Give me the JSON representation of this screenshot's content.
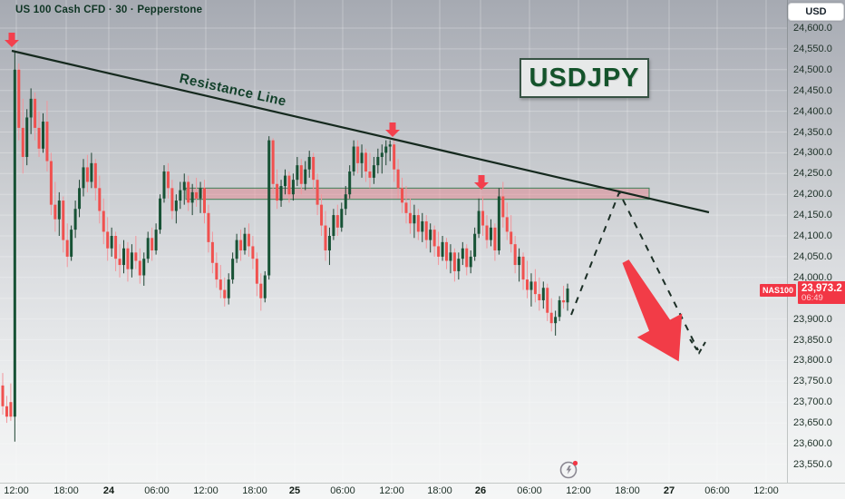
{
  "header": {
    "title": "US 100 Cash CFD · 30 · Pepperstone",
    "currency_button": "USD"
  },
  "annotations": {
    "pair_label": "USDJPY",
    "resistance_label": "Resistance Line",
    "price_badge": {
      "symbol": "NAS100",
      "price": "23,973.2",
      "countdown": "06:49"
    }
  },
  "colors": {
    "bull_body": "#175235",
    "bull_wick": "#1d4231",
    "bear_body": "#f0514f",
    "bear_wick": "#f2959b",
    "zone_fill": "rgba(239,83,96,0.30)",
    "zone_border": "rgba(47,122,78,0.9)",
    "trendline": "#15291e",
    "dashed": "#1b2e25",
    "marker_red": "#f3404d",
    "big_arrow": "#f23c47",
    "badge_red": "#f23645",
    "grid": "rgba(255,255,255,0.28)",
    "axis_text": "#1c2f26"
  },
  "price_axis": {
    "labels": [
      {
        "text": "24,600.0",
        "value": 24600
      },
      {
        "text": "24,550.0",
        "value": 24550
      },
      {
        "text": "24,500.0",
        "value": 24500
      },
      {
        "text": "24,450.0",
        "value": 24450
      },
      {
        "text": "24,400.0",
        "value": 24400
      },
      {
        "text": "24,350.0",
        "value": 24350
      },
      {
        "text": "24,300.0",
        "value": 24300
      },
      {
        "text": "24,250.0",
        "value": 24250
      },
      {
        "text": "24,200.0",
        "value": 24200
      },
      {
        "text": "24,150.0",
        "value": 24150
      },
      {
        "text": "24,100.0",
        "value": 24100
      },
      {
        "text": "24,050.0",
        "value": 24050
      },
      {
        "text": "24,000.0",
        "value": 24000
      },
      {
        "text": "23,900.0",
        "value": 23900
      },
      {
        "text": "23,850.0",
        "value": 23850
      },
      {
        "text": "23,800.0",
        "value": 23800
      },
      {
        "text": "23,750.0",
        "value": 23750
      },
      {
        "text": "23,700.0",
        "value": 23700
      },
      {
        "text": "23,650.0",
        "value": 23650
      },
      {
        "text": "23,600.0",
        "value": 23600
      },
      {
        "text": "23,550.0",
        "value": 23550
      }
    ],
    "grid_values": [
      24600,
      24550,
      24500,
      24450,
      24400,
      24350,
      24300,
      24250,
      24200,
      24150,
      24100,
      24050,
      24000,
      23950,
      23900,
      23850,
      23800,
      23750,
      23700,
      23650,
      23600,
      23550
    ]
  },
  "time_axis": {
    "labels": [
      {
        "text": "12:00",
        "x": 18,
        "bold": false
      },
      {
        "text": "18:00",
        "x": 73,
        "bold": false
      },
      {
        "text": "24",
        "x": 120,
        "bold": true
      },
      {
        "text": "06:00",
        "x": 173,
        "bold": false
      },
      {
        "text": "12:00",
        "x": 227,
        "bold": false
      },
      {
        "text": "18:00",
        "x": 281,
        "bold": false
      },
      {
        "text": "25",
        "x": 325,
        "bold": true
      },
      {
        "text": "06:00",
        "x": 378,
        "bold": false
      },
      {
        "text": "12:00",
        "x": 432,
        "bold": false
      },
      {
        "text": "18:00",
        "x": 485,
        "bold": false
      },
      {
        "text": "26",
        "x": 530,
        "bold": true
      },
      {
        "text": "06:00",
        "x": 584,
        "bold": false
      },
      {
        "text": "12:00",
        "x": 638,
        "bold": false
      },
      {
        "text": "18:00",
        "x": 692,
        "bold": false
      },
      {
        "text": "27",
        "x": 738,
        "bold": true
      },
      {
        "text": "06:00",
        "x": 791,
        "bold": false
      },
      {
        "text": "12:00",
        "x": 845,
        "bold": false
      }
    ]
  },
  "chart_data": {
    "type": "candlestick",
    "title": "US 100 Cash CFD",
    "interval_minutes": 30,
    "provider": "Pepperstone",
    "ticker_badge": "NAS100",
    "last_price": 23973.2,
    "bar_countdown": "06:49",
    "ylim": [
      23550,
      24600
    ],
    "grid": true,
    "candles": [
      [
        23740,
        23770,
        23670,
        23690
      ],
      [
        23690,
        23715,
        23650,
        23665
      ],
      [
        23700,
        23745,
        23655,
        23665
      ],
      [
        23665,
        24545,
        23605,
        24500
      ],
      [
        24500,
        24515,
        24330,
        24360
      ],
      [
        24360,
        24430,
        24250,
        24290
      ],
      [
        24290,
        24405,
        24270,
        24385
      ],
      [
        24385,
        24455,
        24345,
        24430
      ],
      [
        24430,
        24445,
        24330,
        24360
      ],
      [
        24360,
        24400,
        24290,
        24310
      ],
      [
        24310,
        24395,
        24300,
        24375
      ],
      [
        24375,
        24425,
        24255,
        24280
      ],
      [
        24280,
        24300,
        24150,
        24175
      ],
      [
        24175,
        24230,
        24110,
        24140
      ],
      [
        24140,
        24205,
        24100,
        24185
      ],
      [
        24185,
        24195,
        24060,
        24090
      ],
      [
        24090,
        24130,
        24025,
        24050
      ],
      [
        24050,
        24125,
        24040,
        24115
      ],
      [
        24115,
        24185,
        24095,
        24165
      ],
      [
        24165,
        24235,
        24145,
        24215
      ],
      [
        24215,
        24285,
        24195,
        24265
      ],
      [
        24265,
        24295,
        24205,
        24230
      ],
      [
        24230,
        24300,
        24215,
        24275
      ],
      [
        24275,
        24285,
        24185,
        24215
      ],
      [
        24215,
        24245,
        24130,
        24160
      ],
      [
        24160,
        24190,
        24080,
        24110
      ],
      [
        24110,
        24145,
        24040,
        24070
      ],
      [
        24070,
        24120,
        24050,
        24100
      ],
      [
        24100,
        24110,
        24015,
        24045
      ],
      [
        24045,
        24080,
        24000,
        24030
      ],
      [
        24030,
        24090,
        24010,
        24070
      ],
      [
        24070,
        24085,
        23990,
        24020
      ],
      [
        24020,
        24080,
        24000,
        24060
      ],
      [
        24060,
        24100,
        24020,
        24040
      ],
      [
        24040,
        24070,
        23985,
        24005
      ],
      [
        24005,
        24060,
        23980,
        24045
      ],
      [
        24045,
        24110,
        24035,
        24095
      ],
      [
        24095,
        24120,
        24040,
        24065
      ],
      [
        24065,
        24130,
        24055,
        24115
      ],
      [
        24115,
        24200,
        24105,
        24190
      ],
      [
        24190,
        24270,
        24180,
        24255
      ],
      [
        24255,
        24275,
        24190,
        24215
      ],
      [
        24215,
        24235,
        24140,
        24160
      ],
      [
        24160,
        24200,
        24130,
        24185
      ],
      [
        24185,
        24230,
        24165,
        24210
      ],
      [
        24210,
        24250,
        24175,
        24230
      ],
      [
        24230,
        24245,
        24160,
        24180
      ],
      [
        24180,
        24225,
        24150,
        24205
      ],
      [
        24205,
        24240,
        24170,
        24190
      ],
      [
        24190,
        24230,
        24155,
        24215
      ],
      [
        24215,
        24235,
        24130,
        24155
      ],
      [
        24155,
        24175,
        24060,
        24085
      ],
      [
        24085,
        24110,
        24010,
        24035
      ],
      [
        24035,
        24060,
        23975,
        23995
      ],
      [
        23995,
        24030,
        23950,
        23970
      ],
      [
        23970,
        24000,
        23930,
        23950
      ],
      [
        23950,
        24010,
        23935,
        23995
      ],
      [
        23995,
        24060,
        23985,
        24045
      ],
      [
        24045,
        24105,
        24035,
        24090
      ],
      [
        24090,
        24115,
        24040,
        24065
      ],
      [
        24065,
        24120,
        24055,
        24105
      ],
      [
        24105,
        24130,
        24050,
        24075
      ],
      [
        24075,
        24100,
        24020,
        24045
      ],
      [
        24045,
        24060,
        23955,
        23985
      ],
      [
        23985,
        24010,
        23920,
        23950
      ],
      [
        23950,
        24015,
        23940,
        24005
      ],
      [
        24005,
        24340,
        23995,
        24330
      ],
      [
        24330,
        24335,
        24200,
        24225
      ],
      [
        24225,
        24260,
        24165,
        24185
      ],
      [
        24185,
        24235,
        24170,
        24220
      ],
      [
        24220,
        24260,
        24200,
        24245
      ],
      [
        24245,
        24255,
        24180,
        24200
      ],
      [
        24200,
        24250,
        24185,
        24235
      ],
      [
        24235,
        24290,
        24220,
        24270
      ],
      [
        24270,
        24285,
        24200,
        24225
      ],
      [
        24225,
        24280,
        24210,
        24260
      ],
      [
        24260,
        24305,
        24240,
        24290
      ],
      [
        24290,
        24300,
        24210,
        24235
      ],
      [
        24235,
        24250,
        24150,
        24175
      ],
      [
        24175,
        24200,
        24100,
        24125
      ],
      [
        24125,
        24160,
        24040,
        24065
      ],
      [
        24065,
        24120,
        24030,
        24100
      ],
      [
        24100,
        24165,
        24090,
        24150
      ],
      [
        24150,
        24175,
        24100,
        24120
      ],
      [
        24120,
        24180,
        24110,
        24165
      ],
      [
        24165,
        24220,
        24150,
        24200
      ],
      [
        24200,
        24270,
        24190,
        24255
      ],
      [
        24255,
        24330,
        24245,
        24315
      ],
      [
        24315,
        24330,
        24250,
        24275
      ],
      [
        24275,
        24320,
        24240,
        24300
      ],
      [
        24300,
        24310,
        24230,
        24255
      ],
      [
        24255,
        24300,
        24215,
        24240
      ],
      [
        24240,
        24290,
        24225,
        24270
      ],
      [
        24270,
        24310,
        24250,
        24290
      ],
      [
        24290,
        24320,
        24250,
        24300
      ],
      [
        24300,
        24330,
        24270,
        24315
      ],
      [
        24315,
        24330,
        24280,
        24320
      ],
      [
        24320,
        24335,
        24230,
        24260
      ],
      [
        24260,
        24285,
        24190,
        24215
      ],
      [
        24215,
        24240,
        24155,
        24180
      ],
      [
        24180,
        24220,
        24130,
        24155
      ],
      [
        24155,
        24190,
        24105,
        24130
      ],
      [
        24130,
        24175,
        24095,
        24150
      ],
      [
        24150,
        24165,
        24090,
        24110
      ],
      [
        24110,
        24155,
        24085,
        24135
      ],
      [
        24135,
        24150,
        24070,
        24090
      ],
      [
        24090,
        24130,
        24060,
        24115
      ],
      [
        24115,
        24125,
        24050,
        24075
      ],
      [
        24075,
        24110,
        24030,
        24050
      ],
      [
        24050,
        24100,
        24040,
        24085
      ],
      [
        24085,
        24095,
        24020,
        24040
      ],
      [
        24040,
        24080,
        24010,
        24060
      ],
      [
        24060,
        24070,
        23990,
        24015
      ],
      [
        24015,
        24060,
        23995,
        24045
      ],
      [
        24045,
        24085,
        24030,
        24070
      ],
      [
        24070,
        24080,
        24005,
        24025
      ],
      [
        24025,
        24065,
        24010,
        24050
      ],
      [
        24050,
        24120,
        24040,
        24105
      ],
      [
        24105,
        24190,
        24095,
        24160
      ],
      [
        24160,
        24195,
        24100,
        24125
      ],
      [
        24125,
        24150,
        24070,
        24090
      ],
      [
        24090,
        24140,
        24075,
        24120
      ],
      [
        24120,
        24130,
        24040,
        24065
      ],
      [
        24065,
        24215,
        24055,
        24195
      ],
      [
        24195,
        24230,
        24120,
        24145
      ],
      [
        24145,
        24180,
        24090,
        24110
      ],
      [
        24110,
        24150,
        24060,
        24080
      ],
      [
        24080,
        24100,
        24010,
        24030
      ],
      [
        24030,
        24070,
        23990,
        24050
      ],
      [
        24050,
        24060,
        23970,
        23995
      ],
      [
        23995,
        24040,
        23950,
        23970
      ],
      [
        23970,
        24010,
        23930,
        23990
      ],
      [
        23990,
        24020,
        23940,
        23960
      ],
      [
        23960,
        24000,
        23920,
        23945
      ],
      [
        23945,
        23990,
        23925,
        23975
      ],
      [
        23975,
        23985,
        23895,
        23915
      ],
      [
        23915,
        23950,
        23870,
        23890
      ],
      [
        23890,
        23920,
        23860,
        23905
      ],
      [
        23905,
        23955,
        23895,
        23945
      ],
      [
        23945,
        23980,
        23925,
        23940
      ],
      [
        23940,
        23985,
        23920,
        23973.2
      ]
    ],
    "drawings": {
      "resistance_line": {
        "x1": 13,
        "y1": 56,
        "x2": 782,
        "y2": 234,
        "from_price": 24545,
        "to_price": 24160
      },
      "supply_zone": {
        "price_top": 24215,
        "price_bottom": 24188,
        "x1": 205,
        "x2": 716
      },
      "marker_arrows_down": [
        {
          "x": 13,
          "y": 44
        },
        {
          "x": 433,
          "y": 143
        },
        {
          "x": 531,
          "y": 201
        }
      ],
      "dashed_projection": {
        "points": [
          [
            630,
            347
          ],
          [
            683,
            212
          ],
          [
            770,
            386
          ]
        ]
      },
      "big_arrow": {
        "x": 690,
        "y": 288,
        "angle": 62,
        "length": 125
      }
    }
  }
}
